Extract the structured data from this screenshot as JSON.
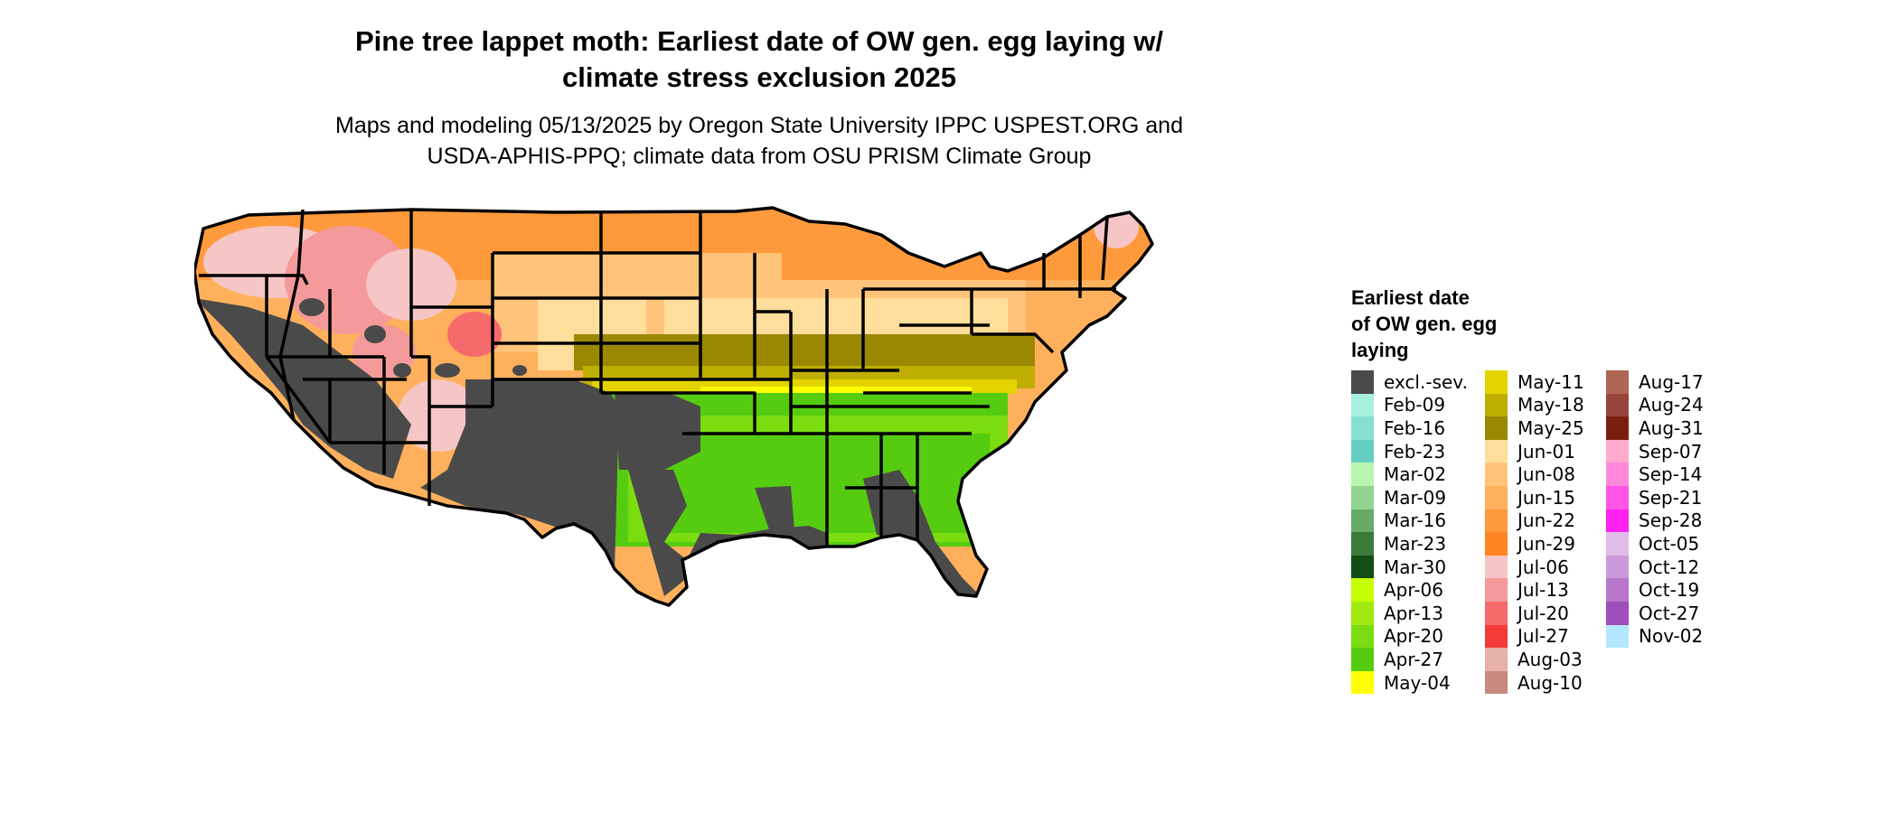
{
  "title_line1": "Pine tree lappet moth: Earliest date of OW gen. egg laying w/",
  "title_line2": "climate stress exclusion 2025",
  "subtitle_line1": "Maps and modeling 05/13/2025 by Oregon State University IPPC USPEST.ORG and",
  "subtitle_line2": "USDA-APHIS-PPQ; climate data from OSU PRISM Climate Group",
  "legend": {
    "title_lines": [
      "Earliest date",
      "of OW gen. egg",
      "laying"
    ],
    "items": [
      {
        "label": "excl.-sev.",
        "color": "#4a4a4a"
      },
      {
        "label": "Feb-09",
        "color": "#a6f0e0"
      },
      {
        "label": "Feb-16",
        "color": "#86e0d0"
      },
      {
        "label": "Feb-23",
        "color": "#66cfc3"
      },
      {
        "label": "Mar-02",
        "color": "#b9f5b0"
      },
      {
        "label": "Mar-09",
        "color": "#92d590"
      },
      {
        "label": "Mar-16",
        "color": "#66aa66"
      },
      {
        "label": "Mar-23",
        "color": "#3a7a3a"
      },
      {
        "label": "Mar-30",
        "color": "#134d13"
      },
      {
        "label": "Apr-06",
        "color": "#c6ff00"
      },
      {
        "label": "Apr-13",
        "color": "#a0ea10"
      },
      {
        "label": "Apr-20",
        "color": "#7bdc10"
      },
      {
        "label": "Apr-27",
        "color": "#55cc10"
      },
      {
        "label": "May-04",
        "color": "#ffff00"
      },
      {
        "label": "May-11",
        "color": "#e3d400"
      },
      {
        "label": "May-18",
        "color": "#beae00"
      },
      {
        "label": "May-25",
        "color": "#9a8800"
      },
      {
        "label": "Jun-01",
        "color": "#ffdd9b"
      },
      {
        "label": "Jun-08",
        "color": "#ffc47a"
      },
      {
        "label": "Jun-15",
        "color": "#ffb05c"
      },
      {
        "label": "Jun-22",
        "color": "#ff9a3c"
      },
      {
        "label": "Jun-29",
        "color": "#ff8520"
      },
      {
        "label": "Jul-06",
        "color": "#f6c6c6"
      },
      {
        "label": "Jul-13",
        "color": "#f59a9a"
      },
      {
        "label": "Jul-20",
        "color": "#f56a6a"
      },
      {
        "label": "Jul-27",
        "color": "#f53a3a"
      },
      {
        "label": "Aug-03",
        "color": "#e6b1a6"
      },
      {
        "label": "Aug-10",
        "color": "#c98a7e"
      },
      {
        "label": "Aug-17",
        "color": "#b06655"
      },
      {
        "label": "Aug-24",
        "color": "#98443a"
      },
      {
        "label": "Aug-31",
        "color": "#7a1f10"
      },
      {
        "label": "Sep-07",
        "color": "#ffaacc"
      },
      {
        "label": "Sep-14",
        "color": "#ff88dd"
      },
      {
        "label": "Sep-21",
        "color": "#ff55e6"
      },
      {
        "label": "Sep-28",
        "color": "#ff22f0"
      },
      {
        "label": "Oct-05",
        "color": "#e0bde6"
      },
      {
        "label": "Oct-12",
        "color": "#cc99dd"
      },
      {
        "label": "Oct-19",
        "color": "#b877cc"
      },
      {
        "label": "Oct-27",
        "color": "#a04ebc"
      },
      {
        "label": "Nov-02",
        "color": "#b3e6ff"
      }
    ]
  }
}
